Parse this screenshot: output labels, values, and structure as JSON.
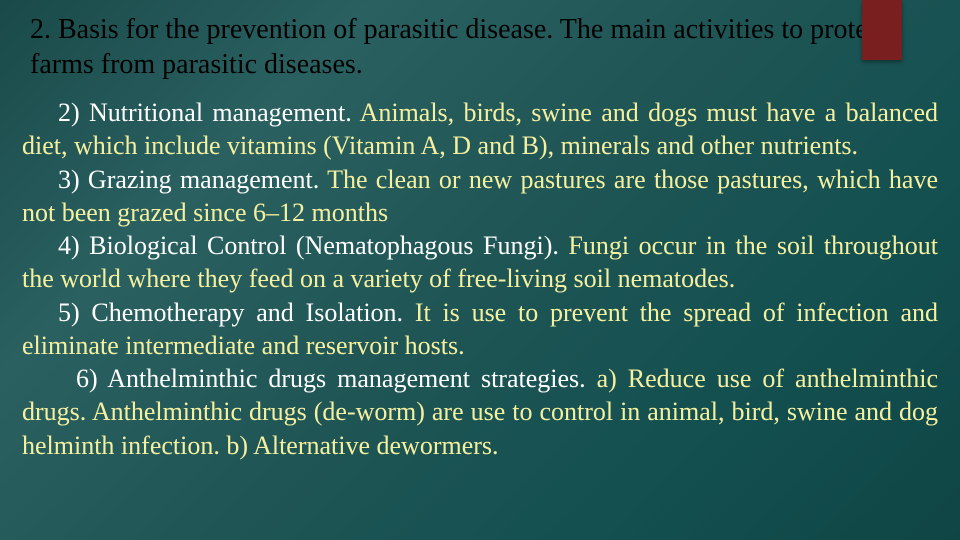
{
  "slide": {
    "title": "2. Basis for the prevention of parasitic disease. The main activities to protect farms from parasitic diseases.",
    "accent_color": "#7a1f1f",
    "background_gradient": [
      "#1a4a4a",
      "#2a6060",
      "#1f5555",
      "#145050",
      "#0f4545"
    ],
    "title_color": "#000000",
    "body_color": "#f5f0a0",
    "lead_color": "#ffffff",
    "title_fontsize": 28,
    "body_fontsize": 26,
    "font_family": "Times New Roman",
    "items": [
      {
        "lead": "2) Nutritional management. ",
        "rest": "Animals, birds, swine and dogs must have a balanced diet, which include vitamins (Vitamin A, D and B), minerals and other nutrients."
      },
      {
        "lead": "3) Grazing management. ",
        "rest": "The clean or new pastures are those pastures, which have not been grazed since 6–12 months"
      },
      {
        "lead": "4) Biological Control (Nematophagous Fungi). ",
        "rest": "Fungi occur in the soil throughout the world where they feed on a variety of free-living soil nematodes."
      },
      {
        "lead": "5) Chemotherapy and Isolation. ",
        "rest": "It is use to prevent the spread of infection and eliminate intermediate and reservoir hosts."
      },
      {
        "lead": "6) Anthelminthic drugs management strategies. ",
        "rest": "a) Reduce use of anthelminthic drugs. Anthelminthic drugs (de-worm) are use to control in animal, bird, swine and dog helminth infection. b) Alternative dewormers."
      }
    ]
  }
}
